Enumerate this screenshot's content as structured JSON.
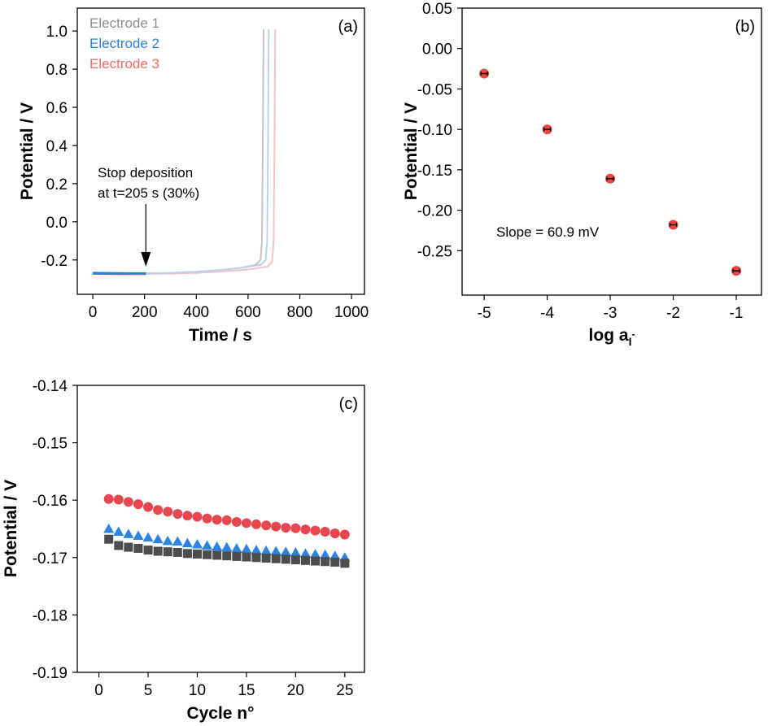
{
  "chart_data": [
    {
      "type": "line",
      "panel_label": "(a)",
      "xlabel": "Time / s",
      "ylabel": "Potential / V",
      "xlim": [
        -60,
        1050
      ],
      "ylim": [
        -0.38,
        1.12
      ],
      "xticks": [
        0,
        200,
        400,
        600,
        800,
        1000
      ],
      "xtick_labels": [
        "0",
        "200",
        "400",
        "600",
        "800",
        "1000"
      ],
      "yticks": [
        -0.2,
        0.0,
        0.2,
        0.4,
        0.6,
        0.8,
        1.0
      ],
      "ytick_labels": [
        "-0.2",
        "0.0",
        "0.2",
        "0.4",
        "0.6",
        "0.8",
        "1.0"
      ],
      "annotation": {
        "lines": [
          "Stop deposition",
          "at t=205 s (30%)"
        ],
        "arrow_x": 205
      },
      "legend_position": "top-left",
      "series": [
        {
          "name": "Electrode 1",
          "color": "#7f7f7f",
          "faded_color": "#c4c4c4",
          "stop_time": 205,
          "x": [
            0,
            100,
            205,
            300,
            400,
            500,
            580,
            630,
            648,
            654,
            657,
            660
          ],
          "y": [
            -0.268,
            -0.27,
            -0.271,
            -0.268,
            -0.262,
            -0.252,
            -0.24,
            -0.225,
            -0.2,
            -0.1,
            0.4,
            1.01
          ]
        },
        {
          "name": "Electrode 2",
          "color": "#2f7fd8",
          "faded_color": "#b9d3ef",
          "stop_time": 205,
          "x": [
            0,
            100,
            205,
            300,
            400,
            500,
            580,
            650,
            668,
            674,
            677,
            680
          ],
          "y": [
            -0.268,
            -0.27,
            -0.27,
            -0.268,
            -0.262,
            -0.252,
            -0.24,
            -0.225,
            -0.2,
            -0.1,
            0.4,
            1.01
          ]
        },
        {
          "name": "Electrode 3",
          "color": "#e84a4a",
          "faded_color": "#f4c3c8",
          "stop_time": 205,
          "x": [
            0,
            100,
            205,
            300,
            400,
            500,
            600,
            675,
            693,
            699,
            702,
            705
          ],
          "y": [
            -0.272,
            -0.273,
            -0.273,
            -0.272,
            -0.268,
            -0.26,
            -0.25,
            -0.235,
            -0.21,
            -0.1,
            0.4,
            1.01
          ]
        }
      ]
    },
    {
      "type": "scatter",
      "panel_label": "(b)",
      "xlabel_main": "log a",
      "xlabel_sub": "I",
      "xlabel_sup": "-",
      "ylabel": "Potential / V",
      "xlim": [
        -5.35,
        -0.6
      ],
      "ylim": [
        -0.305,
        0.05
      ],
      "xticks": [
        -5,
        -4,
        -3,
        -2,
        -1
      ],
      "xtick_labels": [
        "-5",
        "-4",
        "-3",
        "-2",
        "-1"
      ],
      "yticks": [
        0.05,
        0.0,
        -0.05,
        -0.1,
        -0.15,
        -0.2,
        -0.25
      ],
      "ytick_labels": [
        "0.05",
        "0.00",
        "-0.05",
        "-0.10",
        "-0.15",
        "-0.20",
        "-0.25"
      ],
      "annotation": "Slope = 60.9 mV",
      "marker_color": "#e8483f",
      "x": [
        -5,
        -4,
        -3,
        -2,
        -1
      ],
      "y": [
        -0.031,
        -0.1,
        -0.161,
        -0.218,
        -0.275
      ]
    },
    {
      "type": "scatter",
      "panel_label": "(c)",
      "xlabel": "Cycle n°",
      "ylabel": "Potential / V",
      "xlim": [
        -2.2,
        27
      ],
      "ylim": [
        -0.19,
        -0.14
      ],
      "xticks": [
        0,
        5,
        10,
        15,
        20,
        25
      ],
      "xtick_labels": [
        "0",
        "5",
        "10",
        "15",
        "20",
        "25"
      ],
      "yticks": [
        -0.14,
        -0.15,
        -0.16,
        -0.17,
        -0.18,
        -0.19
      ],
      "ytick_labels": [
        "-0.14",
        "-0.15",
        "-0.16",
        "-0.17",
        "-0.18",
        "-0.19"
      ],
      "series": [
        {
          "marker": "circle",
          "color": "#e8474f",
          "x": [
            1,
            2,
            3,
            4,
            5,
            6,
            7,
            8,
            9,
            10,
            11,
            12,
            13,
            14,
            15,
            16,
            17,
            18,
            19,
            20,
            21,
            22,
            23,
            24,
            25
          ],
          "y": [
            -0.1598,
            -0.1599,
            -0.1603,
            -0.1607,
            -0.1612,
            -0.1617,
            -0.162,
            -0.1624,
            -0.1627,
            -0.1629,
            -0.1632,
            -0.1634,
            -0.1635,
            -0.1638,
            -0.164,
            -0.1642,
            -0.1644,
            -0.1646,
            -0.1648,
            -0.1649,
            -0.1651,
            -0.1653,
            -0.1655,
            -0.1658,
            -0.166
          ]
        },
        {
          "marker": "triangle",
          "color": "#2d84e0",
          "x": [
            1,
            2,
            3,
            4,
            5,
            6,
            7,
            8,
            9,
            10,
            11,
            12,
            13,
            14,
            15,
            16,
            17,
            18,
            19,
            20,
            21,
            22,
            23,
            24,
            25
          ],
          "y": [
            -0.165,
            -0.1655,
            -0.1659,
            -0.1662,
            -0.1665,
            -0.1668,
            -0.1671,
            -0.1672,
            -0.1675,
            -0.1677,
            -0.1679,
            -0.1681,
            -0.1682,
            -0.1684,
            -0.1685,
            -0.1687,
            -0.1688,
            -0.1689,
            -0.169,
            -0.1691,
            -0.1693,
            -0.1694,
            -0.1695,
            -0.1697,
            -0.17
          ]
        },
        {
          "marker": "square",
          "color": "#4d4d4d",
          "x": [
            1,
            2,
            3,
            4,
            5,
            6,
            7,
            8,
            9,
            10,
            11,
            12,
            13,
            14,
            15,
            16,
            17,
            18,
            19,
            20,
            21,
            22,
            23,
            24,
            25
          ],
          "y": [
            -0.1668,
            -0.1679,
            -0.1682,
            -0.1684,
            -0.1687,
            -0.1689,
            -0.169,
            -0.1691,
            -0.1693,
            -0.1694,
            -0.1695,
            -0.1696,
            -0.1697,
            -0.1698,
            -0.1699,
            -0.17,
            -0.1701,
            -0.1702,
            -0.1703,
            -0.1704,
            -0.1705,
            -0.1706,
            -0.1707,
            -0.1708,
            -0.171
          ]
        }
      ]
    }
  ]
}
